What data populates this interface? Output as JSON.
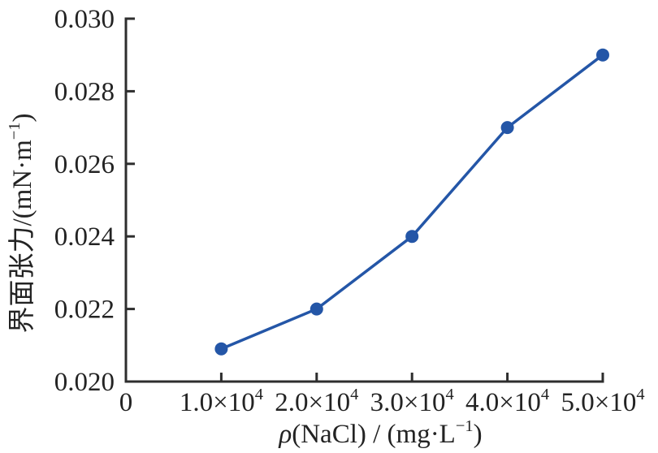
{
  "figure": {
    "background": "#ffffff"
  },
  "chart_data": {
    "type": "line",
    "title": "",
    "x": [
      10000,
      20000,
      30000,
      40000,
      50000
    ],
    "y": [
      0.0209,
      0.022,
      0.024,
      0.027,
      0.029
    ],
    "xlim": [
      0,
      50000
    ],
    "ylim": [
      0.02,
      0.03
    ],
    "xlabel": "ρ(NaCl) / (mg·L⁻¹)",
    "ylabel": "界面张力/(mN·m⁻¹)",
    "xlabel_parts": [
      {
        "t": "ρ",
        "italic": true
      },
      {
        "t": "(NaCl) / (mg·L"
      },
      {
        "t": "−1",
        "sup": true
      },
      {
        "t": ")"
      }
    ],
    "ylabel_parts": [
      {
        "t": "界面张力/(mN·m"
      },
      {
        "t": "−1",
        "sup": true
      },
      {
        "t": ")"
      }
    ],
    "x_ticks": [
      {
        "value": 0,
        "text": "0",
        "parts": [
          {
            "t": "0"
          }
        ]
      },
      {
        "value": 10000,
        "text": "1.0×10⁴",
        "parts": [
          {
            "t": "1.0×10"
          },
          {
            "t": "4",
            "sup": true
          }
        ]
      },
      {
        "value": 20000,
        "text": "2.0×10⁴",
        "parts": [
          {
            "t": "2.0×10"
          },
          {
            "t": "4",
            "sup": true
          }
        ]
      },
      {
        "value": 30000,
        "text": "3.0×10⁴",
        "parts": [
          {
            "t": "3.0×10"
          },
          {
            "t": "4",
            "sup": true
          }
        ]
      },
      {
        "value": 40000,
        "text": "4.0×10⁴",
        "parts": [
          {
            "t": "4.0×10"
          },
          {
            "t": "4",
            "sup": true
          }
        ]
      },
      {
        "value": 50000,
        "text": "5.0×10⁴",
        "parts": [
          {
            "t": "5.0×10"
          },
          {
            "t": "4",
            "sup": true
          }
        ]
      }
    ],
    "y_ticks": [
      {
        "value": 0.02,
        "label": "0.020"
      },
      {
        "value": 0.022,
        "label": "0.022"
      },
      {
        "value": 0.024,
        "label": "0.024"
      },
      {
        "value": 0.026,
        "label": "0.026"
      },
      {
        "value": 0.028,
        "label": "0.028"
      },
      {
        "value": 0.03,
        "label": "0.030"
      }
    ],
    "grid": false,
    "legend": "none",
    "marker": "circle",
    "line_color": "#2456a7",
    "marker_color": "#2456a7",
    "axis_color": "#2e2e2e",
    "text_color": "#232323"
  }
}
